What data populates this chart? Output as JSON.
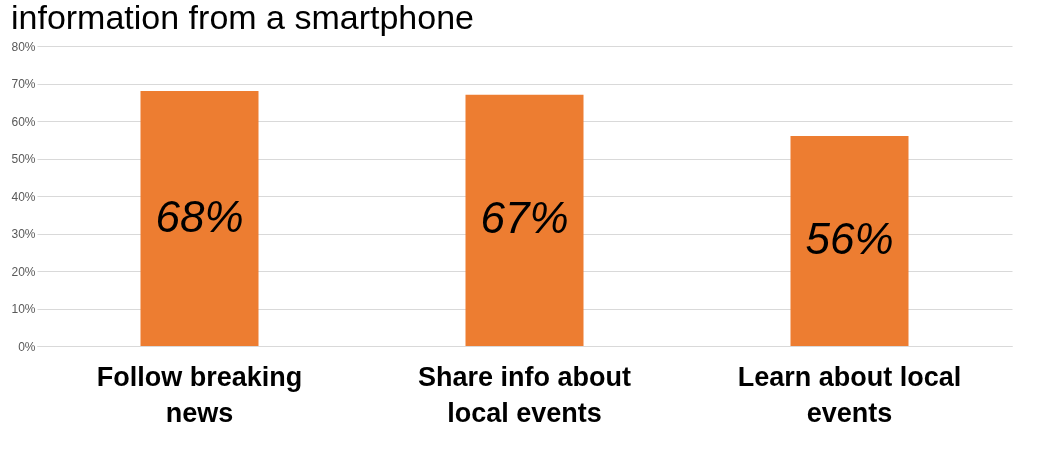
{
  "chart_data": {
    "type": "bar",
    "title": "information from a smartphone",
    "categories": [
      "Follow breaking news",
      "Share info about local events",
      "Learn about local events"
    ],
    "values": [
      68,
      67,
      56
    ],
    "color": "#ed7d31",
    "value_labels": [
      "68%",
      "67%",
      "56%"
    ],
    "ylim": [
      0,
      80
    ],
    "yticks": [
      {
        "value": 0,
        "label": "0%"
      },
      {
        "value": 10,
        "label": "10%"
      },
      {
        "value": 20,
        "label": "20%"
      },
      {
        "value": 30,
        "label": "30%"
      },
      {
        "value": 40,
        "label": "40%"
      },
      {
        "value": 50,
        "label": "50%"
      },
      {
        "value": 60,
        "label": "60%"
      },
      {
        "value": 70,
        "label": "70%"
      },
      {
        "value": 80,
        "label": "80%"
      }
    ],
    "grid": "y"
  }
}
